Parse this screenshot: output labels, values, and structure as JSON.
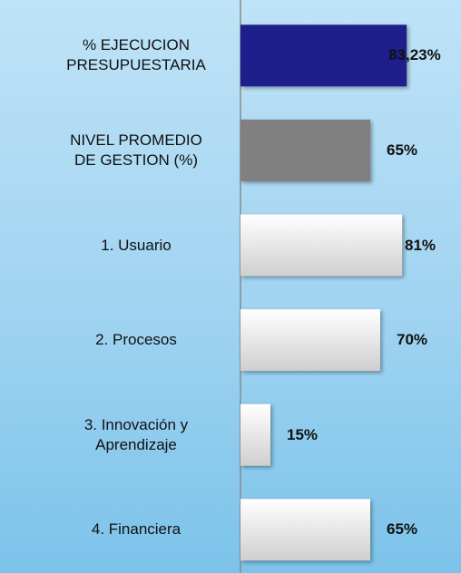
{
  "chart_data": {
    "type": "bar",
    "orientation": "horizontal",
    "categories": [
      "% EJECUCION\nPRESUPUESTARIA",
      "NIVEL PROMEDIO\nDE GESTION (%)",
      "1. Usuario",
      "2. Procesos",
      "3. Innovación y\nAprendizaje",
      "4. Financiera"
    ],
    "values": [
      83.23,
      65,
      81,
      70,
      15,
      65
    ],
    "value_labels": [
      "83,23%",
      "65%",
      "81%",
      "70%",
      "15%",
      "65%"
    ],
    "colors": [
      "#1e1e8c",
      "#808080",
      "#f4f4f4",
      "#f4f4f4",
      "#f4f4f4",
      "#f4f4f4"
    ],
    "xlim": [
      0,
      100
    ]
  }
}
